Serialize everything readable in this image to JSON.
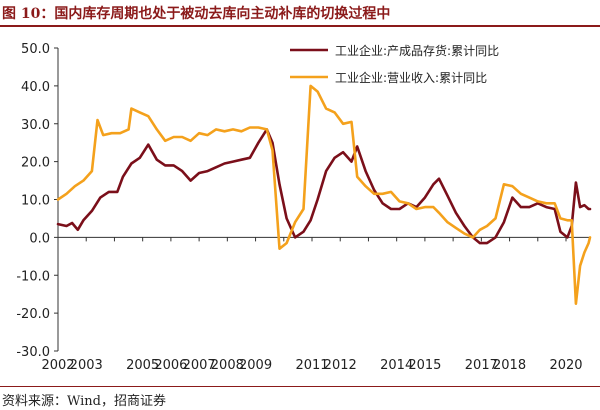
{
  "figure": {
    "title": "图 10：国内库存周期也处于被动去库向主动补库的切换过程中",
    "source": "资料来源：Wind，招商证券"
  },
  "chart_data": {
    "type": "line",
    "xlim": [
      2002.0,
      2020.85
    ],
    "ylim": [
      -30,
      50
    ],
    "x_ticks": [
      2002,
      2003,
      2005,
      2006,
      2007,
      2008,
      2009,
      2011,
      2012,
      2014,
      2015,
      2017,
      2018,
      2020
    ],
    "x_tick_labels": [
      "2002",
      "2003",
      "2005",
      "2006",
      "2007",
      "2008",
      "2009",
      "2011",
      "2012",
      "2014",
      "2015",
      "2017",
      "2018",
      "2020"
    ],
    "y_ticks": [
      50,
      40,
      30,
      20,
      10,
      0,
      -10,
      -20,
      -30
    ],
    "y_tick_labels": [
      "50.0",
      "40.0",
      "30.0",
      "20.0",
      "10.0",
      "0.0",
      "-10.0",
      "-20.0",
      "-30.0"
    ],
    "legend_position": "top-right",
    "series": [
      {
        "name": "工业企业:产成品存货:累计同比",
        "color": "#7b0f1a",
        "points": [
          [
            2002.0,
            3.5
          ],
          [
            2002.3,
            3.0
          ],
          [
            2002.5,
            3.8
          ],
          [
            2002.7,
            2.0
          ],
          [
            2002.9,
            4.5
          ],
          [
            2003.2,
            7.0
          ],
          [
            2003.5,
            10.5
          ],
          [
            2003.8,
            12.0
          ],
          [
            2004.1,
            12.0
          ],
          [
            2004.3,
            16.0
          ],
          [
            2004.6,
            19.5
          ],
          [
            2004.9,
            21.0
          ],
          [
            2005.2,
            24.5
          ],
          [
            2005.5,
            20.5
          ],
          [
            2005.8,
            19.0
          ],
          [
            2006.1,
            19.0
          ],
          [
            2006.4,
            17.5
          ],
          [
            2006.7,
            15.0
          ],
          [
            2007.0,
            17.0
          ],
          [
            2007.3,
            17.5
          ],
          [
            2007.6,
            18.5
          ],
          [
            2007.9,
            19.5
          ],
          [
            2008.2,
            20.0
          ],
          [
            2008.5,
            20.5
          ],
          [
            2008.8,
            21.0
          ],
          [
            2009.1,
            25.0
          ],
          [
            2009.4,
            28.5
          ],
          [
            2009.6,
            25.0
          ],
          [
            2009.85,
            14.0
          ],
          [
            2010.1,
            5.0
          ],
          [
            2010.4,
            0.0
          ],
          [
            2010.7,
            1.5
          ],
          [
            2010.95,
            4.5
          ],
          [
            2011.2,
            10.0
          ],
          [
            2011.5,
            17.5
          ],
          [
            2011.8,
            21.0
          ],
          [
            2012.1,
            22.5
          ],
          [
            2012.4,
            20.0
          ],
          [
            2012.6,
            24.0
          ],
          [
            2012.9,
            17.5
          ],
          [
            2013.2,
            12.5
          ],
          [
            2013.5,
            9.0
          ],
          [
            2013.8,
            7.5
          ],
          [
            2014.1,
            7.5
          ],
          [
            2014.4,
            9.0
          ],
          [
            2014.7,
            8.0
          ],
          [
            2015.0,
            10.5
          ],
          [
            2015.3,
            14.0
          ],
          [
            2015.5,
            15.5
          ],
          [
            2015.8,
            11.0
          ],
          [
            2016.1,
            6.5
          ],
          [
            2016.4,
            3.0
          ],
          [
            2016.7,
            0.0
          ],
          [
            2016.95,
            -1.5
          ],
          [
            2017.2,
            -1.5
          ],
          [
            2017.5,
            0.0
          ],
          [
            2017.8,
            4.0
          ],
          [
            2018.1,
            10.5
          ],
          [
            2018.4,
            8.0
          ],
          [
            2018.7,
            8.0
          ],
          [
            2019.0,
            9.0
          ],
          [
            2019.3,
            8.0
          ],
          [
            2019.6,
            7.5
          ],
          [
            2019.8,
            1.5
          ],
          [
            2020.05,
            0.0
          ],
          [
            2020.2,
            3.0
          ],
          [
            2020.35,
            14.5
          ],
          [
            2020.5,
            8.0
          ],
          [
            2020.65,
            8.5
          ],
          [
            2020.8,
            7.5
          ],
          [
            2020.85,
            7.5
          ]
        ]
      },
      {
        "name": "工业企业:营业收入:累计同比",
        "color": "#f4a11c",
        "points": [
          [
            2002.0,
            10.0
          ],
          [
            2002.3,
            11.5
          ],
          [
            2002.6,
            13.5
          ],
          [
            2002.9,
            15.0
          ],
          [
            2003.2,
            17.5
          ],
          [
            2003.4,
            31.0
          ],
          [
            2003.6,
            27.0
          ],
          [
            2003.9,
            27.5
          ],
          [
            2004.2,
            27.5
          ],
          [
            2004.5,
            28.5
          ],
          [
            2004.6,
            34.0
          ],
          [
            2004.9,
            33.0
          ],
          [
            2005.2,
            32.0
          ],
          [
            2005.5,
            28.5
          ],
          [
            2005.8,
            25.5
          ],
          [
            2006.1,
            26.5
          ],
          [
            2006.4,
            26.5
          ],
          [
            2006.7,
            25.5
          ],
          [
            2007.0,
            27.5
          ],
          [
            2007.3,
            27.0
          ],
          [
            2007.6,
            28.5
          ],
          [
            2007.9,
            28.0
          ],
          [
            2008.2,
            28.5
          ],
          [
            2008.5,
            28.0
          ],
          [
            2008.8,
            29.0
          ],
          [
            2009.1,
            29.0
          ],
          [
            2009.4,
            28.5
          ],
          [
            2009.6,
            23.0
          ],
          [
            2009.85,
            -3.0
          ],
          [
            2010.1,
            -1.5
          ],
          [
            2010.4,
            4.0
          ],
          [
            2010.7,
            7.5
          ],
          [
            2010.95,
            40.0
          ],
          [
            2011.2,
            38.5
          ],
          [
            2011.5,
            34.0
          ],
          [
            2011.8,
            33.0
          ],
          [
            2012.1,
            30.0
          ],
          [
            2012.4,
            30.5
          ],
          [
            2012.6,
            16.0
          ],
          [
            2012.9,
            13.5
          ],
          [
            2013.2,
            11.5
          ],
          [
            2013.5,
            11.5
          ],
          [
            2013.8,
            12.0
          ],
          [
            2014.1,
            9.5
          ],
          [
            2014.4,
            9.0
          ],
          [
            2014.7,
            7.5
          ],
          [
            2015.0,
            8.0
          ],
          [
            2015.3,
            8.0
          ],
          [
            2015.5,
            6.5
          ],
          [
            2015.8,
            4.0
          ],
          [
            2016.1,
            2.5
          ],
          [
            2016.4,
            1.0
          ],
          [
            2016.7,
            0.0
          ],
          [
            2016.95,
            2.0
          ],
          [
            2017.2,
            3.0
          ],
          [
            2017.5,
            5.0
          ],
          [
            2017.8,
            14.0
          ],
          [
            2018.1,
            13.5
          ],
          [
            2018.4,
            11.5
          ],
          [
            2018.7,
            10.5
          ],
          [
            2019.0,
            9.5
          ],
          [
            2019.3,
            9.0
          ],
          [
            2019.6,
            9.0
          ],
          [
            2019.8,
            5.0
          ],
          [
            2020.05,
            4.5
          ],
          [
            2020.2,
            4.5
          ],
          [
            2020.35,
            -17.5
          ],
          [
            2020.5,
            -7.5
          ],
          [
            2020.65,
            -4.0
          ],
          [
            2020.8,
            -1.5
          ],
          [
            2020.85,
            0.0
          ]
        ]
      }
    ]
  }
}
